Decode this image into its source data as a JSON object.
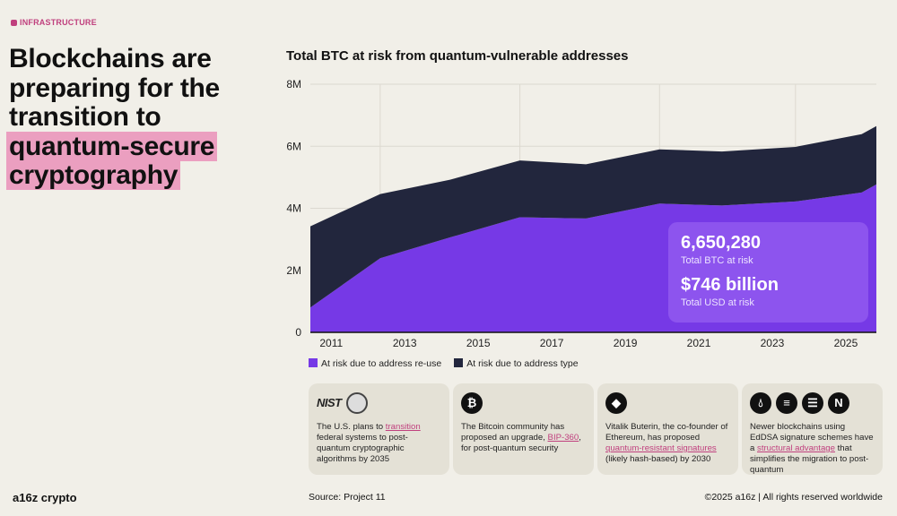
{
  "tag": "INFRASTRUCTURE",
  "headline": {
    "plain": "Blockchains are preparing for the transition to",
    "highlight": "quantum-secure cryptography"
  },
  "colors": {
    "reuse": "#7639e6",
    "type": "#22263d",
    "accent": "#c0407e",
    "highlight": "#eb9fc0",
    "infobox": "#8d54ee"
  },
  "chart_data": {
    "type": "area",
    "stacked": true,
    "title": "Total BTC at risk from quantum-vulnerable addresses",
    "ylim": [
      0,
      8000000
    ],
    "yticks": [
      "0",
      "2M",
      "4M",
      "6M",
      "8M"
    ],
    "xticks": [
      "2011",
      "2013",
      "2015",
      "2017",
      "2019",
      "2021",
      "2023",
      "2025"
    ],
    "xlim": [
      2010.7,
      2026.1
    ],
    "grid": true,
    "legend": "bottom-left",
    "x": [
      2010.7,
      2012.6,
      2014.5,
      2016.4,
      2018.2,
      2020.2,
      2021.9,
      2023.9,
      2025.7,
      2026.1
    ],
    "series": [
      {
        "name": "At risk due to address re-use",
        "color": "#7639e6",
        "values": [
          800000,
          2390000,
          3060000,
          3710000,
          3670000,
          4150000,
          4090000,
          4220000,
          4510000,
          4770000
        ]
      },
      {
        "name": "At risk due to address type",
        "color": "#22263d",
        "values": [
          2620000,
          2070000,
          1860000,
          1830000,
          1750000,
          1750000,
          1740000,
          1760000,
          1880000,
          1880000
        ]
      }
    ]
  },
  "infobox": {
    "btc_value": "6,650,280",
    "btc_label": "Total BTC at risk",
    "usd_value": "$746 billion",
    "usd_label": "Total USD at risk"
  },
  "cards": [
    {
      "icons": [
        "NIST",
        "nist-seal"
      ],
      "pre": "The U.S. plans to ",
      "link": "transition",
      "post": " federal systems to post-quantum cryptographic algorithms by 2035"
    },
    {
      "icons": [
        "bitcoin"
      ],
      "pre": "The Bitcoin community has proposed an upgrade, ",
      "link": "BIP-360",
      "post": ", for post-quantum security"
    },
    {
      "icons": [
        "ethereum"
      ],
      "pre": "Vitalik Buterin, the co-founder of Ethereum, has proposed ",
      "link": "quantum-resistant signatures",
      "post": " (likely hash-based) by 2030"
    },
    {
      "icons": [
        "sui",
        "algorand",
        "solana",
        "near"
      ],
      "pre": "Newer blockchains using EdDSA signature schemes have a ",
      "link": "structural advantage",
      "post": " that simplifies the migration  to post-quantum"
    }
  ],
  "footer": {
    "logo": "a16z crypto",
    "source": "Source: Project 11",
    "copyright": "©2025 a16z | All rights reserved worldwide"
  }
}
